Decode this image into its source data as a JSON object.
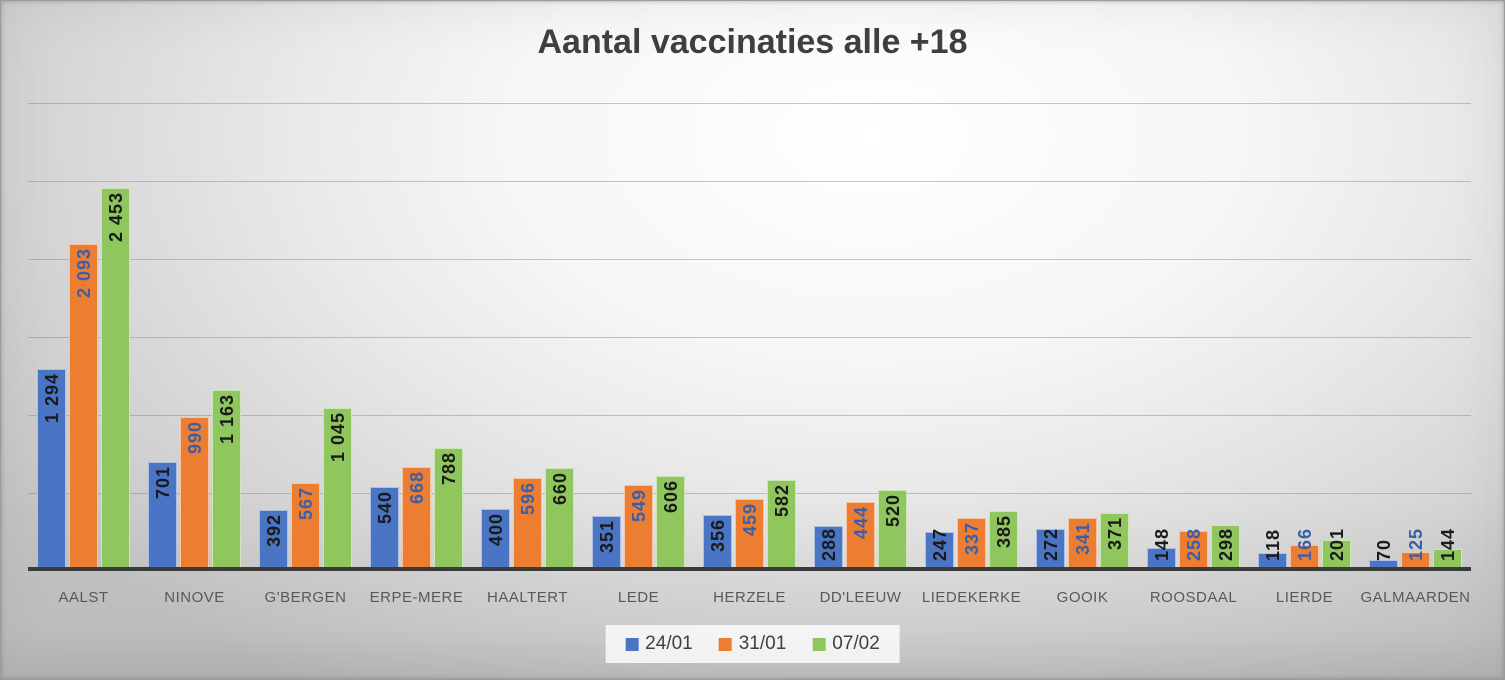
{
  "chart_data": {
    "type": "bar",
    "title": "Aantal vaccinaties alle +18",
    "categories": [
      "AALST",
      "NINOVE",
      "G'BERGEN",
      "ERPE-MERE",
      "HAALTERT",
      "LEDE",
      "HERZELE",
      "DD'LEEUW",
      "LIEDEKERKE",
      "GOOIK",
      "ROOSDAAL",
      "LIERDE",
      "GALMAARDEN"
    ],
    "series": [
      {
        "name": "24/01",
        "color": "#4A74C4",
        "label_color": "#1a1a1a",
        "values": [
          1294,
          701,
          392,
          540,
          400,
          351,
          356,
          288,
          247,
          272,
          148,
          118,
          70
        ],
        "display_values": [
          "1 294",
          "701",
          "392",
          "540",
          "400",
          "351",
          "356",
          "288",
          "247",
          "272",
          "148",
          "118",
          "70"
        ]
      },
      {
        "name": "31/01",
        "color": "#ED7D31",
        "label_color": "#3A5FA8",
        "values": [
          2093,
          990,
          567,
          668,
          596,
          549,
          459,
          444,
          337,
          341,
          258,
          166,
          125
        ],
        "display_values": [
          "2 093",
          "990",
          "567",
          "668",
          "596",
          "549",
          "459",
          "444",
          "337",
          "341",
          "258",
          "166",
          "125"
        ]
      },
      {
        "name": "07/02",
        "color": "#8FC75E",
        "label_color": "#1a1a1a",
        "values": [
          2453,
          1163,
          1045,
          788,
          660,
          606,
          582,
          520,
          385,
          371,
          298,
          201,
          144
        ],
        "display_values": [
          "2 453",
          "1 163",
          "1 045",
          "788",
          "660",
          "606",
          "582",
          "520",
          "385",
          "371",
          "298",
          "201",
          "144"
        ]
      }
    ],
    "ylim": [
      0,
      3000
    ],
    "y_major_unit": 500,
    "gridlines": "horizontal",
    "y_axis_labels_visible": false,
    "data_labels": "rotated vertical, space as thousands separator",
    "legend_position": "bottom",
    "background": "gray radial gradient, white center"
  }
}
